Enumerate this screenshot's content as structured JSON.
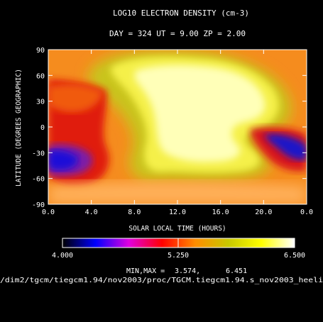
{
  "chart_data": {
    "type": "heatmap",
    "title": "LOG10 ELECTRON DENSITY (cm-3)",
    "subtitle": "DAY = 324   UT =  9.00  ZP =   2.00",
    "xlabel": "SOLAR LOCAL TIME (HOURS)",
    "ylabel": "LATITUDE (DEGREES GEOGRAPHIC)",
    "xlim": [
      0,
      24
    ],
    "ylim": [
      -90,
      90
    ],
    "x_ticks": [
      "0.0",
      "4.0",
      "8.0",
      "12.0",
      "16.0",
      "20.0",
      "0.0"
    ],
    "y_ticks": [
      "-90",
      "-60",
      "-30",
      "0",
      "30",
      "60",
      "90"
    ],
    "colorbar": {
      "range": [
        4.0,
        6.5
      ],
      "tick_labels": [
        "4.000",
        "5.250",
        "6.500"
      ],
      "stops": [
        "#000000",
        "#0000ff",
        "#e000e0",
        "#ff0000",
        "#ff8c00",
        "#c8c800",
        "#ffff00",
        "#ffffff"
      ]
    },
    "minmax_label": "MIN,MAX =",
    "min": "3.574,",
    "max": "6.451",
    "file_path": "/dim2/tgcm/tiegcm1.94/nov2003/proc/TGCM.tiegcm1.94.s_nov2003_heeli",
    "grid": false,
    "features": [
      {
        "desc": "high density core",
        "x_range": [
          7.5,
          19.0
        ],
        "y_range": [
          -40,
          88
        ],
        "peak": 6.45
      },
      {
        "desc": "low density trough west",
        "x_range": [
          0,
          5.5
        ],
        "y_range": [
          -65,
          50
        ],
        "min": 4.0
      },
      {
        "desc": "low density trough east",
        "x_range": [
          19.5,
          24
        ],
        "y_range": [
          -45,
          0
        ],
        "min": 3.57
      }
    ]
  }
}
